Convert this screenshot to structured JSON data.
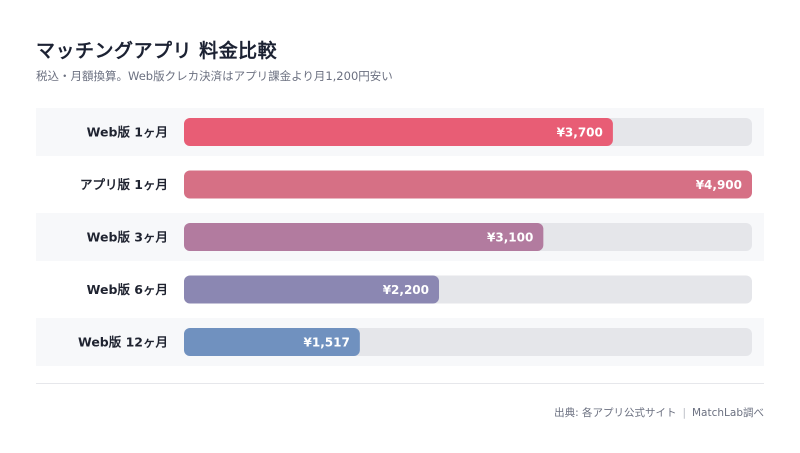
{
  "title": "マッチングアプリ 料金比較",
  "subtitle": "税込・月額換算。Web版クレカ決済はアプリ課金より月1,200円安い",
  "source": {
    "text": "出典: 各アプリ公式サイト",
    "separator": "|",
    "credit": "MatchLab調べ"
  },
  "chart_data": {
    "type": "bar",
    "orientation": "horizontal",
    "categories": [
      "Web版 1ヶ月",
      "アプリ版 1ヶ月",
      "Web版 3ヶ月",
      "Web版 6ヶ月",
      "Web版 12ヶ月"
    ],
    "values": [
      3700,
      4900,
      3100,
      2200,
      1517
    ],
    "value_labels": [
      "¥3,700",
      "¥4,900",
      "¥3,100",
      "¥2,200",
      "¥1,517"
    ],
    "colors": [
      "#e85d75",
      "#d67085",
      "#b27b9f",
      "#8b87b2",
      "#7091bf"
    ],
    "xlim": [
      0,
      4900
    ],
    "track_color": "#e5e6ea",
    "row_band_color": "#f7f8fa"
  }
}
